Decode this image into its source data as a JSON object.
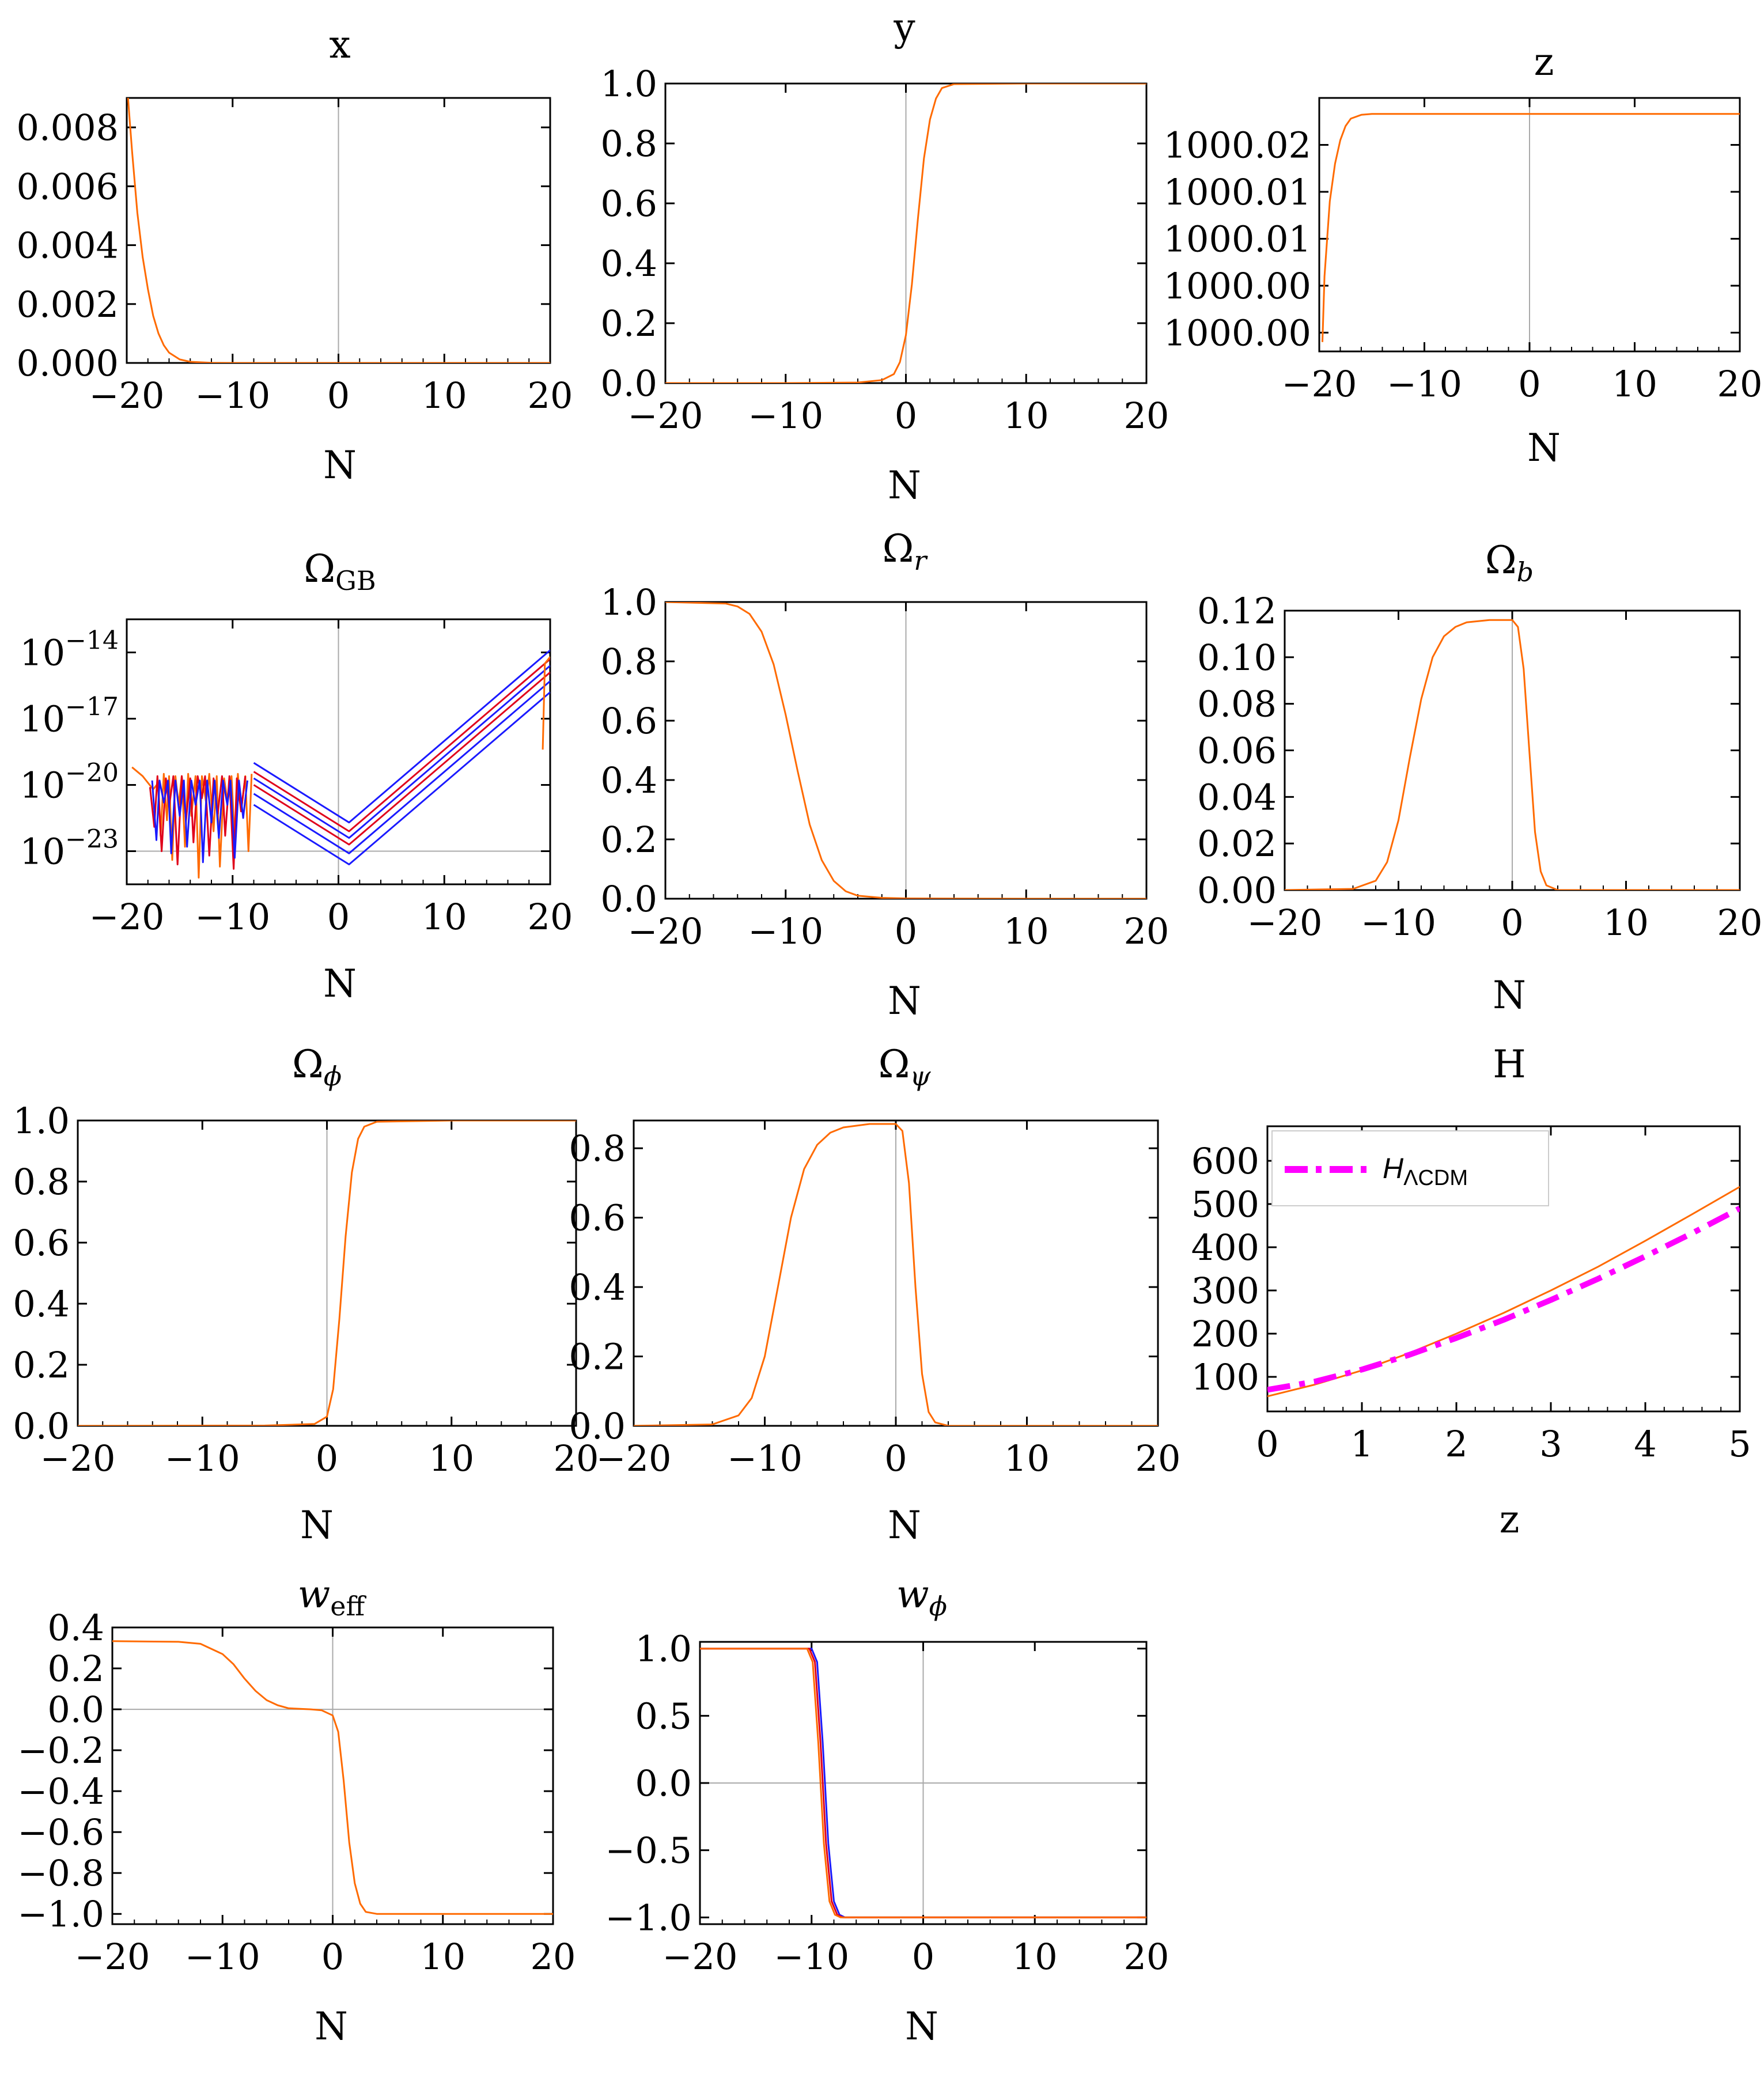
{
  "figure": {
    "colors": {
      "orange": "#ff6a00",
      "blue": "#1a1aff",
      "red": "#e0001b",
      "magenta": "#ff00ff",
      "zero_line": "#aaaaaa"
    }
  },
  "chart_data": [
    {
      "id": "x",
      "type": "line",
      "title": "x",
      "xlabel": "N",
      "ylabel": "",
      "xlim": [
        -20,
        20
      ],
      "ylim": [
        0,
        0.009
      ],
      "log_y": false,
      "xticks": [
        "−20",
        "−10",
        "0",
        "10",
        "20"
      ],
      "yticks": [
        "0.000",
        "0.002",
        "0.004",
        "0.006",
        "0.008"
      ],
      "series": [
        {
          "color": "#ff6a00",
          "x": [
            -19.9,
            -19.5,
            -19,
            -18.5,
            -18,
            -17.5,
            -17,
            -16.5,
            -16,
            -15,
            -14,
            -12,
            -10,
            0,
            10,
            20
          ],
          "y": [
            0.0091,
            0.0072,
            0.0051,
            0.0036,
            0.0025,
            0.0016,
            0.001,
            0.0006,
            0.00035,
            0.00012,
            4e-05,
            5e-06,
            0,
            0,
            0,
            0
          ]
        }
      ]
    },
    {
      "id": "y",
      "type": "line",
      "title": "y",
      "xlabel": "N",
      "ylabel": "",
      "xlim": [
        -20,
        20
      ],
      "ylim": [
        0,
        1.0
      ],
      "log_y": false,
      "xticks": [
        "−20",
        "−10",
        "0",
        "10",
        "20"
      ],
      "yticks": [
        "0.0",
        "0.2",
        "0.4",
        "0.6",
        "0.8",
        "1.0"
      ],
      "series": [
        {
          "color": "#ff6a00",
          "x": [
            -20,
            -10,
            -4,
            -2,
            -1,
            -0.5,
            0,
            0.5,
            1,
            1.5,
            2,
            2.5,
            3,
            4,
            10,
            20
          ],
          "y": [
            0,
            0,
            0.002,
            0.01,
            0.03,
            0.07,
            0.16,
            0.33,
            0.55,
            0.75,
            0.88,
            0.95,
            0.985,
            0.998,
            1.0,
            1.0
          ]
        }
      ]
    },
    {
      "id": "z",
      "type": "line",
      "title": "z",
      "xlabel": "N",
      "ylabel": "",
      "xlim": [
        -20,
        20
      ],
      "ylim": [
        999.998,
        1000.025
      ],
      "log_y": false,
      "xticks": [
        "−20",
        "−10",
        "0",
        "10",
        "20"
      ],
      "yticks": [
        "1000.00",
        "1000.00",
        "1000.01",
        "1000.01",
        "1000.02"
      ],
      "ytick_values": [
        1000.0,
        1000.005,
        1000.01,
        1000.015,
        1000.02
      ],
      "series": [
        {
          "color": "#ff6a00",
          "x": [
            -19.7,
            -19.5,
            -19,
            -18.5,
            -18,
            -17.5,
            -17,
            -16,
            -15,
            -10,
            0,
            10,
            20
          ],
          "y": [
            999.999,
            1000.006,
            1000.014,
            1000.018,
            1000.0205,
            1000.022,
            1000.0228,
            1000.0232,
            1000.0233,
            1000.0233,
            1000.0233,
            1000.0233,
            1000.0233
          ]
        }
      ]
    },
    {
      "id": "omega-gb",
      "type": "line",
      "title": "Ω",
      "title_sub": "GB",
      "xlabel": "N",
      "ylabel": "",
      "xlim": [
        -20,
        20
      ],
      "ylim": [
        -24.5,
        -12.5
      ],
      "log_y": true,
      "xticks": [
        "−20",
        "−10",
        "0",
        "10",
        "20"
      ],
      "yticks": [
        "10",
        "10",
        "10",
        "10"
      ],
      "ytick_exps": [
        "−23",
        "−20",
        "−17",
        "−14"
      ],
      "ytick_values": [
        -23,
        -20,
        -17,
        -14
      ],
      "series": [
        {
          "color": "#1a1aff",
          "x": [
            -8,
            1,
            20
          ],
          "y": [
            -19.0,
            -21.7,
            -13.9
          ]
        },
        {
          "color": "#e0001b",
          "x": [
            -8,
            1,
            20
          ],
          "y": [
            -19.4,
            -22.1,
            -14.3
          ]
        },
        {
          "color": "#1a1aff",
          "x": [
            -8,
            1,
            20
          ],
          "y": [
            -19.7,
            -22.4,
            -14.6
          ]
        },
        {
          "color": "#e0001b",
          "x": [
            -8,
            1,
            20
          ],
          "y": [
            -20.0,
            -22.7,
            -14.9
          ]
        },
        {
          "color": "#1a1aff",
          "x": [
            -8,
            1,
            20
          ],
          "y": [
            -20.4,
            -23.1,
            -15.3
          ]
        },
        {
          "color": "#1a1aff",
          "x": [
            -8,
            1,
            20
          ],
          "y": [
            -20.9,
            -23.6,
            -15.8
          ]
        },
        {
          "color": "#ff6a00",
          "x": [
            -19.5,
            -18.5,
            -17.5,
            -17,
            -16.8,
            -16.5,
            -16.2,
            -16,
            -15.7,
            -15.4,
            -15.1,
            -14.8,
            -14.5,
            -14.2,
            -13.9,
            -13.5,
            -13.2,
            -12.9,
            -12.5,
            -12.2,
            -11.8,
            -11.5,
            -11.2,
            -10.8,
            -10.5,
            -10.1,
            -9.8,
            -9.5,
            -9.2,
            -8.8,
            -8.5,
            -8.2
          ],
          "y": [
            -19.2,
            -19.6,
            -20.2,
            -19.9,
            -22.3,
            -19.5,
            -21.6,
            -19.6,
            -23.4,
            -19.6,
            -20.9,
            -19.6,
            -22.8,
            -19.5,
            -21.4,
            -19.6,
            -24.2,
            -19.6,
            -20.8,
            -19.5,
            -22.1,
            -19.6,
            -23.7,
            -19.7,
            -20.7,
            -19.6,
            -22.5,
            -19.5,
            -21.2,
            -19.6,
            -23.0,
            -19.5
          ]
        },
        {
          "color": "#e0001b",
          "x": [
            -17.8,
            -17.4,
            -17.1,
            -16.7,
            -16.3,
            -16.0,
            -15.6,
            -15.2,
            -14.8,
            -14.4,
            -14.0,
            -13.7,
            -13.3,
            -12.9,
            -12.6,
            -12.2,
            -11.8,
            -11.4,
            -11.0,
            -10.7,
            -10.3,
            -9.9,
            -9.6,
            -9.2,
            -8.8
          ],
          "y": [
            -20.1,
            -21.9,
            -19.6,
            -23.0,
            -19.7,
            -21.0,
            -19.6,
            -23.6,
            -19.6,
            -21.6,
            -19.7,
            -22.6,
            -19.6,
            -20.6,
            -19.6,
            -23.2,
            -19.7,
            -21.3,
            -19.6,
            -22.3,
            -19.6,
            -23.8,
            -19.7,
            -21.2,
            -19.6
          ]
        },
        {
          "color": "#1a1aff",
          "x": [
            -17.6,
            -17.2,
            -16.9,
            -16.5,
            -16.1,
            -15.8,
            -15.4,
            -15.0,
            -14.6,
            -14.3,
            -13.9,
            -13.5,
            -13.1,
            -12.8,
            -12.4,
            -12.0,
            -11.7,
            -11.3,
            -10.9,
            -10.5,
            -10.2,
            -9.8,
            -9.4,
            -9.0,
            -8.6
          ],
          "y": [
            -19.8,
            -22.5,
            -19.8,
            -20.8,
            -19.8,
            -23.1,
            -19.8,
            -21.4,
            -19.8,
            -22.8,
            -19.8,
            -20.9,
            -19.8,
            -23.5,
            -19.8,
            -21.7,
            -19.8,
            -22.4,
            -19.8,
            -20.9,
            -19.8,
            -23.3,
            -19.8,
            -21.5,
            -19.8
          ]
        },
        {
          "color": "#ff6a00",
          "x": [
            19.3,
            19.5,
            20
          ],
          "y": [
            -18.4,
            -14.5,
            -14.2
          ]
        }
      ]
    },
    {
      "id": "omega-r",
      "type": "line",
      "title": "Ω",
      "title_sub": "r",
      "title_sub_italic": true,
      "xlabel": "N",
      "ylabel": "",
      "xlim": [
        -20,
        20
      ],
      "ylim": [
        0,
        1.0
      ],
      "log_y": false,
      "xticks": [
        "−20",
        "−10",
        "0",
        "10",
        "20"
      ],
      "yticks": [
        "0.0",
        "0.2",
        "0.4",
        "0.6",
        "0.8",
        "1.0"
      ],
      "series": [
        {
          "color": "#ff6a00",
          "x": [
            -20,
            -15,
            -14,
            -13,
            -12,
            -11,
            -10,
            -9,
            -8,
            -7,
            -6,
            -5,
            -4,
            -2,
            0,
            10,
            20
          ],
          "y": [
            1.0,
            0.995,
            0.985,
            0.96,
            0.9,
            0.79,
            0.62,
            0.43,
            0.25,
            0.13,
            0.06,
            0.025,
            0.01,
            0.003,
            0.001,
            0,
            0
          ]
        }
      ]
    },
    {
      "id": "omega-b",
      "type": "line",
      "title": "Ω",
      "title_sub": "b",
      "title_sub_italic": true,
      "xlabel": "N",
      "ylabel": "",
      "xlim": [
        -20,
        20
      ],
      "ylim": [
        0,
        0.12
      ],
      "log_y": false,
      "xticks": [
        "−20",
        "−10",
        "0",
        "10",
        "20"
      ],
      "yticks": [
        "0.00",
        "0.02",
        "0.04",
        "0.06",
        "0.08",
        "0.10",
        "0.12"
      ],
      "series": [
        {
          "color": "#ff6a00",
          "x": [
            -20,
            -14,
            -12,
            -11,
            -10,
            -9,
            -8,
            -7,
            -6,
            -5,
            -4,
            -2,
            0,
            0.5,
            1,
            1.5,
            2,
            2.5,
            3,
            4,
            20
          ],
          "y": [
            0,
            0.0005,
            0.004,
            0.012,
            0.03,
            0.057,
            0.082,
            0.1,
            0.109,
            0.113,
            0.115,
            0.116,
            0.116,
            0.113,
            0.095,
            0.06,
            0.025,
            0.008,
            0.002,
            0,
            0
          ]
        }
      ]
    },
    {
      "id": "omega-phi",
      "type": "line",
      "title": "Ω",
      "title_sub": "ϕ",
      "title_sub_italic": true,
      "xlabel": "N",
      "ylabel": "",
      "xlim": [
        -20,
        20
      ],
      "ylim": [
        0,
        1.0
      ],
      "log_y": false,
      "xticks": [
        "−20",
        "−10",
        "0",
        "10",
        "20"
      ],
      "yticks": [
        "0.0",
        "0.2",
        "0.4",
        "0.6",
        "0.8",
        "1.0"
      ],
      "series": [
        {
          "color": "#ff6a00",
          "x": [
            -20,
            -5,
            -1,
            0,
            0.5,
            1,
            1.5,
            2,
            2.5,
            3,
            4,
            10,
            20
          ],
          "y": [
            0,
            0.001,
            0.006,
            0.03,
            0.12,
            0.35,
            0.62,
            0.83,
            0.94,
            0.98,
            0.996,
            1.0,
            1.0
          ]
        }
      ]
    },
    {
      "id": "omega-psi",
      "type": "line",
      "title": "Ω",
      "title_sub": "ψ",
      "title_sub_italic": true,
      "xlabel": "N",
      "ylabel": "",
      "xlim": [
        -20,
        20
      ],
      "ylim": [
        0,
        0.88
      ],
      "log_y": false,
      "xticks": [
        "−20",
        "−10",
        "0",
        "10",
        "20"
      ],
      "yticks": [
        "0.0",
        "0.2",
        "0.4",
        "0.6",
        "0.8"
      ],
      "series": [
        {
          "color": "#ff6a00",
          "x": [
            -20,
            -14,
            -12,
            -11,
            -10,
            -9,
            -8,
            -7,
            -6,
            -5,
            -4,
            -2,
            0,
            0.5,
            1,
            1.5,
            2,
            2.5,
            3,
            4,
            20
          ],
          "y": [
            0,
            0.004,
            0.03,
            0.08,
            0.2,
            0.4,
            0.6,
            0.74,
            0.81,
            0.845,
            0.86,
            0.87,
            0.87,
            0.85,
            0.7,
            0.4,
            0.15,
            0.04,
            0.01,
            0,
            0
          ]
        }
      ]
    },
    {
      "id": "hubble",
      "type": "line",
      "title": "H",
      "xlabel": "z",
      "ylabel": "",
      "xlim": [
        0,
        5
      ],
      "ylim": [
        20,
        680
      ],
      "log_y": false,
      "show_zero_line": false,
      "xticks": [
        "0",
        "1",
        "2",
        "3",
        "4",
        "5"
      ],
      "yticks": [
        "100",
        "200",
        "300",
        "400",
        "500",
        "600"
      ],
      "ytick_values": [
        100,
        200,
        300,
        400,
        500,
        600
      ],
      "legend": {
        "label": "H",
        "label_sub": "ΛCDM",
        "position": "top-left"
      },
      "series": [
        {
          "color": "#ff6a00",
          "x": [
            0,
            0.5,
            1,
            1.5,
            2,
            2.5,
            3,
            3.5,
            4,
            4.5,
            5
          ],
          "y": [
            55,
            82,
            115,
            155,
            200,
            248,
            300,
            355,
            415,
            477,
            540
          ]
        },
        {
          "name": "HΛCDM",
          "color": "#ff00ff",
          "dash": "dashdot",
          "x": [
            0,
            0.5,
            1,
            1.5,
            2,
            2.5,
            3,
            3.5,
            4,
            4.5,
            5
          ],
          "y": [
            70,
            89,
            117,
            151,
            190,
            232,
            278,
            327,
            379,
            433,
            490
          ]
        }
      ]
    },
    {
      "id": "w-eff",
      "type": "line",
      "title": "w",
      "title_italic": true,
      "title_sub": "eff",
      "xlabel": "N",
      "ylabel": "",
      "xlim": [
        -20,
        20
      ],
      "ylim": [
        -1.05,
        0.4
      ],
      "log_y": false,
      "xticks": [
        "−20",
        "−10",
        "0",
        "10",
        "20"
      ],
      "yticks": [
        "−1.0",
        "−0.8",
        "−0.6",
        "−0.4",
        "−0.2",
        "0.0",
        "0.2",
        "0.4"
      ],
      "ytick_values": [
        -1.0,
        -0.8,
        -0.6,
        -0.4,
        -0.2,
        0.0,
        0.2,
        0.4
      ],
      "series": [
        {
          "color": "#ff6a00",
          "x": [
            -20,
            -14,
            -12,
            -10,
            -9,
            -8,
            -7,
            -6,
            -5,
            -4,
            -2,
            -1,
            0,
            0.5,
            1,
            1.5,
            2,
            2.5,
            3,
            4,
            20
          ],
          "y": [
            0.333,
            0.33,
            0.32,
            0.27,
            0.22,
            0.15,
            0.09,
            0.045,
            0.02,
            0.005,
            0,
            -0.005,
            -0.03,
            -0.11,
            -0.35,
            -0.65,
            -0.85,
            -0.95,
            -0.99,
            -1.0,
            -1.0
          ]
        }
      ]
    },
    {
      "id": "w-phi",
      "type": "line",
      "title": "w",
      "title_italic": true,
      "title_sub": "ϕ",
      "title_sub_italic": true,
      "xlabel": "N",
      "ylabel": "",
      "xlim": [
        -20,
        20
      ],
      "ylim": [
        -1.05,
        1.05
      ],
      "log_y": false,
      "xticks": [
        "−20",
        "−10",
        "0",
        "10",
        "20"
      ],
      "yticks": [
        "−1.0",
        "−0.5",
        "0.0",
        "0.5",
        "1.0"
      ],
      "ytick_values": [
        -1.0,
        -0.5,
        0.0,
        0.5,
        1.0
      ],
      "series": [
        {
          "color": "#1a1aff",
          "x": [
            -20,
            -10,
            -9.5,
            -9,
            -8.5,
            -8,
            -7.5,
            -7,
            20
          ],
          "y": [
            1.0,
            1.0,
            0.9,
            0.3,
            -0.45,
            -0.88,
            -0.98,
            -1.0,
            -1.0
          ]
        },
        {
          "color": "#e0001b",
          "x": [
            -20,
            -10.2,
            -9.7,
            -9.2,
            -8.7,
            -8.2,
            -7.7,
            -7.2,
            20
          ],
          "y": [
            1.0,
            1.0,
            0.9,
            0.3,
            -0.45,
            -0.88,
            -0.98,
            -1.0,
            -1.0
          ]
        },
        {
          "color": "#ff6a00",
          "x": [
            -20,
            -10.4,
            -9.9,
            -9.4,
            -8.9,
            -8.4,
            -7.9,
            -7.4,
            20
          ],
          "y": [
            1.0,
            1.0,
            0.9,
            0.3,
            -0.45,
            -0.88,
            -0.98,
            -1.0,
            -1.0
          ]
        }
      ]
    }
  ]
}
